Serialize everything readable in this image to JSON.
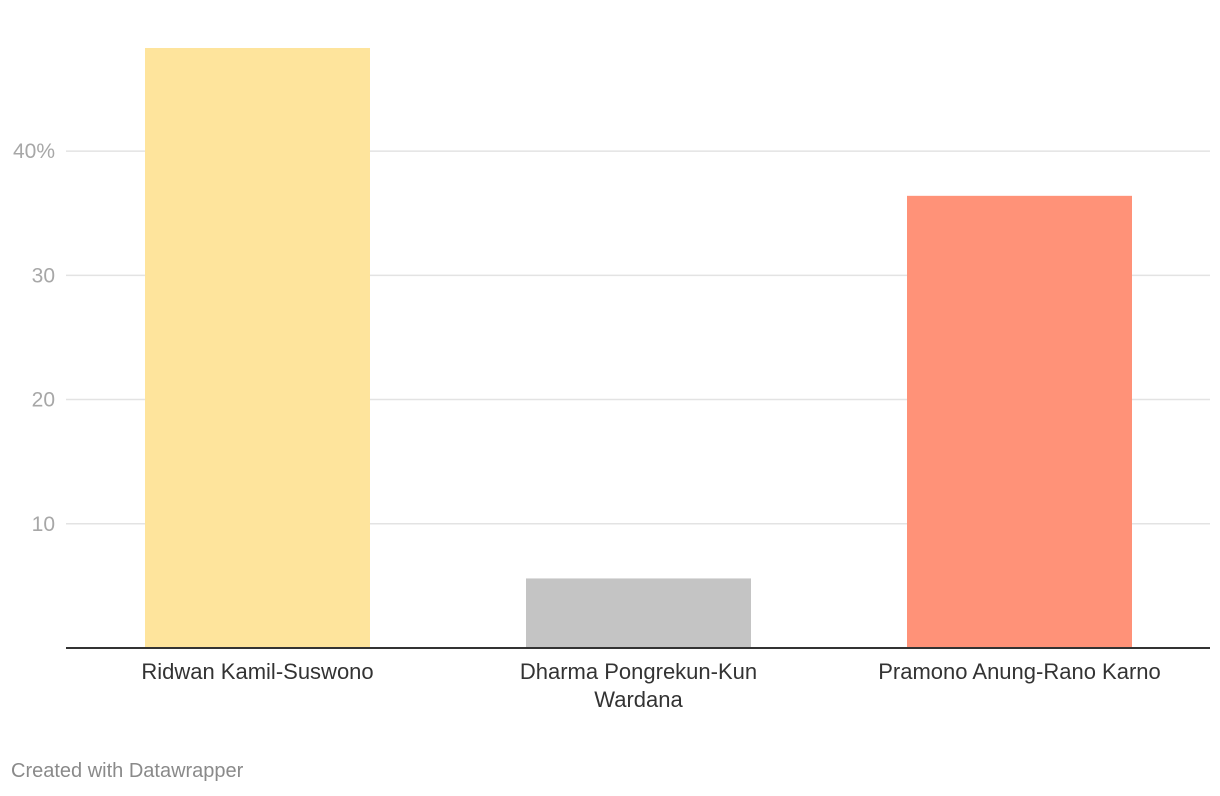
{
  "chart_data": {
    "type": "bar",
    "categories": [
      [
        "Ridwan Kamil-Suswono"
      ],
      [
        "Dharma Pongrekun-Kun",
        "Wardana"
      ],
      [
        "Pramono Anung-Rano Karno"
      ]
    ],
    "values": [
      48.3,
      5.6,
      36.4
    ],
    "colors": [
      "#fee49c",
      "#c4c4c4",
      "#ff9278"
    ],
    "yticks": [
      {
        "value": 10,
        "label": "10"
      },
      {
        "value": 20,
        "label": "20"
      },
      {
        "value": 30,
        "label": "30"
      },
      {
        "value": 40,
        "label": "40%"
      }
    ],
    "ylim": [
      0,
      48.3
    ],
    "grid": true
  },
  "footer": {
    "credit": "Created with Datawrapper"
  }
}
